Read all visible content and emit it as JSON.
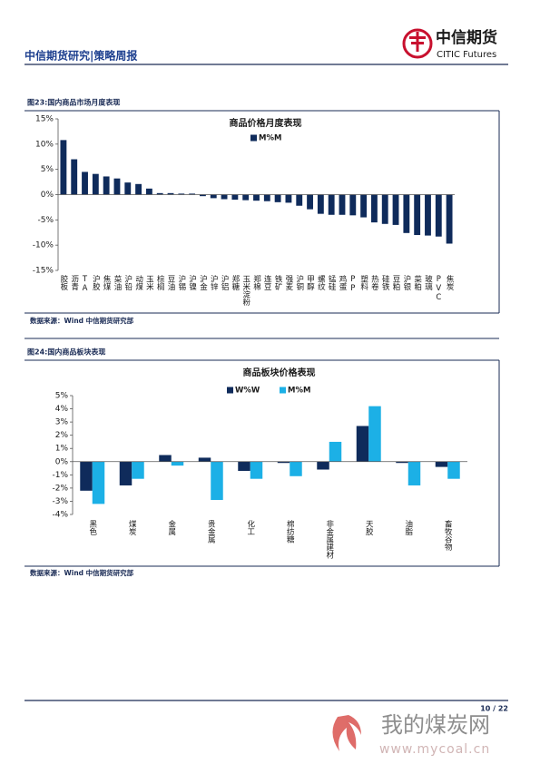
{
  "header": {
    "title": "中信期货研究|策略周报",
    "logo_cn": "中信期货",
    "logo_en": "CITIC Futures"
  },
  "figures": [
    {
      "caption": "图23:国内商品市场月度表现",
      "source": "数据来源：Wind  中信期货研究部"
    },
    {
      "caption": "图24:国内商品板块表现",
      "source": "数据来源：Wind  中信期货研究部"
    }
  ],
  "chart_data": [
    {
      "type": "bar",
      "title": "商品价格月度表现",
      "categories": [
        "胶板",
        "沥青",
        "TA",
        "沪胶",
        "焦煤",
        "菜油",
        "沪铅",
        "动煤",
        "玉米",
        "棕榈",
        "豆油",
        "沪锡",
        "沪镍",
        "沪金",
        "沪锌",
        "沪铝",
        "郑糖",
        "玉米淀粉",
        "郑棉",
        "连豆",
        "铁矿",
        "强麦",
        "沪铜",
        "甲醇",
        "螺纹",
        "锰硅",
        "鸡蛋",
        "PP",
        "塑料",
        "热卷",
        "硅铁",
        "豆粕",
        "沪银",
        "菜粕",
        "玻璃",
        "PVC",
        "焦炭"
      ],
      "series": [
        {
          "name": "M%M",
          "color": "#0f2b5b",
          "values": [
            10.8,
            7.0,
            4.5,
            4.1,
            3.6,
            3.2,
            2.4,
            2.1,
            1.2,
            0.3,
            0.3,
            0.2,
            0.2,
            -0.3,
            -0.7,
            -0.9,
            -1.0,
            -1.1,
            -1.2,
            -1.3,
            -1.5,
            -1.6,
            -2.2,
            -2.9,
            -3.8,
            -4.0,
            -4.0,
            -4.1,
            -4.5,
            -5.5,
            -5.8,
            -6.0,
            -7.6,
            -8.0,
            -8.1,
            -8.3,
            -9.7
          ]
        }
      ],
      "ylim": [
        -15,
        15
      ],
      "yticks": [
        {
          "value": 15,
          "label": "15%"
        },
        {
          "value": 10,
          "label": "10%"
        },
        {
          "value": 5,
          "label": "5%"
        },
        {
          "value": 0,
          "label": "0%"
        },
        {
          "value": -5,
          "label": "-5%"
        },
        {
          "value": -10,
          "label": "-10%"
        },
        {
          "value": -15,
          "label": "-15%"
        }
      ],
      "grid": false
    },
    {
      "type": "bar",
      "title": "商品板块价格表现",
      "categories": [
        "黑色",
        "煤炭",
        "金属",
        "贵金属",
        "化工",
        "棉纺糖",
        "非金属建材",
        "天胶",
        "油脂",
        "畜牧谷物"
      ],
      "series": [
        {
          "name": "W%W",
          "color": "#0f2b5b",
          "values": [
            -2.2,
            -1.8,
            0.5,
            0.3,
            -0.7,
            -0.1,
            -0.6,
            2.7,
            -0.1,
            -0.4
          ]
        },
        {
          "name": "M%M",
          "color": "#1cb0e6",
          "values": [
            -3.2,
            -1.3,
            -0.3,
            -2.9,
            -1.3,
            -1.1,
            1.5,
            4.2,
            -1.8,
            -1.3
          ]
        }
      ],
      "ylim": [
        -4,
        5
      ],
      "yticks": [
        {
          "value": 5,
          "label": "5%"
        },
        {
          "value": 4,
          "label": "4%"
        },
        {
          "value": 3,
          "label": "3%"
        },
        {
          "value": 2,
          "label": "2%"
        },
        {
          "value": 1,
          "label": "1%"
        },
        {
          "value": 0,
          "label": "0%"
        },
        {
          "value": -1,
          "label": "-1%"
        },
        {
          "value": -2,
          "label": "-2%"
        },
        {
          "value": -3,
          "label": "-3%"
        },
        {
          "value": -4,
          "label": "-4%"
        }
      ],
      "grid": false
    }
  ],
  "footer": {
    "page": "10 / 22"
  },
  "watermark": {
    "text": "我的煤炭网",
    "url": "www.mycoal.cn"
  }
}
